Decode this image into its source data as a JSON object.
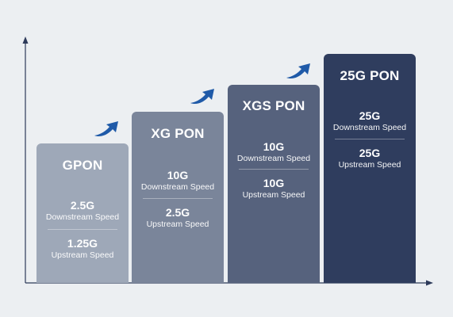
{
  "colors": {
    "background": "#eceff2",
    "axis": "#2d3a5a",
    "arrow": "#1f5aa8"
  },
  "icons": [
    "up-right-arrow-icon"
  ],
  "columns": [
    {
      "id": "gpon",
      "title": "GPON",
      "color": "#9ea8b8",
      "downstream": {
        "value": "2.5G",
        "label": "Downstream Speed"
      },
      "upstream": {
        "value": "1.25G",
        "label": "Upstream Speed"
      }
    },
    {
      "id": "xgpon",
      "title": "XG PON",
      "color": "#7a859a",
      "downstream": {
        "value": "10G",
        "label": "Downstream Speed"
      },
      "upstream": {
        "value": "2.5G",
        "label": "Upstream Speed"
      }
    },
    {
      "id": "xgspon",
      "title": "XGS PON",
      "color": "#56627d",
      "downstream": {
        "value": "10G",
        "label": "Downstream Speed"
      },
      "upstream": {
        "value": "10G",
        "label": "Upstream Speed"
      }
    },
    {
      "id": "25gpon",
      "title": "25G PON",
      "color": "#2f3d5e",
      "downstream": {
        "value": "25G",
        "label": "Downstream Speed"
      },
      "upstream": {
        "value": "25G",
        "label": "Upstream Speed"
      }
    }
  ]
}
